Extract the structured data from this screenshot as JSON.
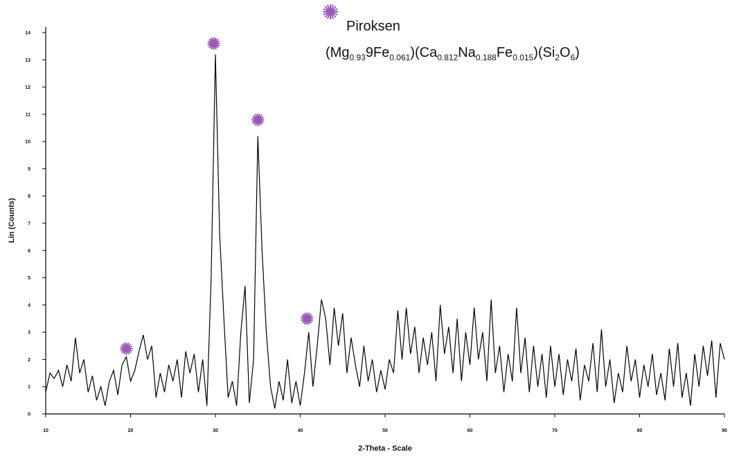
{
  "chart_data": {
    "type": "line",
    "x_label": "2-Theta - Scale",
    "y_label": "Lin (Counts)",
    "legend_label": "Piroksen",
    "legend_formula": [
      {
        "text": "(Mg",
        "sub": "0.93"
      },
      {
        "text": "9Fe",
        "sub": "0.061"
      },
      {
        "text": ")(Ca",
        "sub": "0.812"
      },
      {
        "text": "Na",
        "sub": "0.188"
      },
      {
        "text": "Fe",
        "sub": "0.015"
      },
      {
        "text": ")(Si",
        "sub": "2"
      },
      {
        "text": "O",
        "sub": "6"
      },
      {
        "text": ")"
      }
    ],
    "color": "#000000",
    "marker_color": "#9b59b6",
    "x": [
      10,
      10.5,
      11,
      11.5,
      12,
      12.5,
      13,
      13.5,
      14,
      14.5,
      15,
      15.5,
      16,
      16.5,
      17,
      17.5,
      18,
      18.5,
      19,
      19.5,
      20,
      20.5,
      21,
      21.5,
      22,
      22.5,
      23,
      23.5,
      24,
      24.5,
      25,
      25.5,
      26,
      26.5,
      27,
      27.5,
      28,
      28.5,
      29,
      29.5,
      30,
      30.5,
      31,
      31.5,
      32,
      32.5,
      33,
      33.5,
      34,
      34.5,
      35,
      35.5,
      36,
      36.5,
      37,
      37.5,
      38,
      38.5,
      39,
      39.5,
      40,
      40.5,
      41,
      41.5,
      42,
      42.5,
      43,
      43.5,
      44,
      44.5,
      45,
      45.5,
      46,
      46.5,
      47,
      47.5,
      48,
      48.5,
      49,
      49.5,
      50,
      50.5,
      51,
      51.5,
      52,
      52.5,
      53,
      53.5,
      54,
      54.5,
      55,
      55.5,
      56,
      56.5,
      57,
      57.5,
      58,
      58.5,
      59,
      59.5,
      60,
      60.5,
      61,
      61.5,
      62,
      62.5,
      63,
      63.5,
      64,
      64.5,
      65,
      65.5,
      66,
      66.5,
      67,
      67.5,
      68,
      68.5,
      69,
      69.5,
      70,
      70.5,
      71,
      71.5,
      72,
      72.5,
      73,
      73.5,
      74,
      74.5,
      75,
      75.5,
      76,
      76.5,
      77,
      77.5,
      78,
      78.5,
      79,
      79.5,
      80,
      80.5,
      81,
      81.5,
      82,
      82.5,
      83,
      83.5,
      84,
      84.5,
      85,
      85.5,
      86,
      86.5,
      87,
      87.5,
      88,
      88.5,
      89,
      89.5,
      90
    ],
    "values": [
      0.8,
      1.5,
      1.3,
      1.6,
      1.0,
      1.8,
      1.2,
      2.8,
      1.5,
      2.0,
      0.8,
      1.4,
      0.5,
      1.0,
      0.3,
      1.2,
      1.6,
      0.7,
      1.8,
      2.1,
      1.2,
      1.6,
      2.3,
      2.9,
      2.0,
      2.5,
      0.6,
      1.5,
      0.8,
      1.8,
      1.2,
      2.0,
      0.6,
      2.3,
      1.5,
      2.2,
      0.8,
      2.0,
      0.3,
      5.0,
      13.2,
      6.6,
      3.5,
      0.6,
      1.2,
      0.3,
      3.0,
      4.7,
      0.4,
      2.0,
      10.2,
      6.0,
      3.0,
      1.0,
      0.2,
      1.2,
      0.5,
      2.0,
      0.4,
      1.2,
      0.3,
      1.5,
      3.0,
      1.0,
      2.5,
      4.2,
      3.5,
      1.8,
      3.9,
      2.5,
      3.7,
      1.5,
      2.8,
      1.8,
      1.0,
      2.5,
      1.2,
      2.0,
      0.8,
      1.6,
      0.9,
      2.0,
      1.5,
      3.8,
      2.0,
      3.9,
      2.2,
      3.2,
      1.5,
      2.8,
      1.8,
      3.0,
      1.2,
      4.0,
      2.2,
      3.2,
      1.5,
      3.5,
      1.2,
      3.0,
      1.8,
      3.9,
      2.0,
      3.0,
      1.2,
      4.2,
      1.5,
      2.5,
      0.8,
      2.2,
      1.2,
      3.9,
      1.5,
      2.8,
      0.8,
      2.5,
      1.0,
      2.2,
      0.6,
      2.5,
      1.0,
      2.2,
      0.7,
      2.0,
      1.2,
      2.4,
      0.5,
      1.8,
      1.2,
      2.6,
      0.8,
      3.1,
      1.0,
      2.0,
      0.4,
      1.5,
      0.8,
      2.5,
      1.2,
      2.0,
      0.6,
      1.8,
      1.0,
      2.2,
      0.7,
      1.5,
      0.5,
      2.4,
      1.0,
      2.6,
      0.6,
      1.5,
      0.3,
      2.2,
      1.0,
      2.5,
      1.4,
      2.7,
      0.6,
      2.6,
      2.0
    ],
    "peak_markers": [
      {
        "x": 19.5,
        "y": 2.4
      },
      {
        "x": 29.8,
        "y": 13.6
      },
      {
        "x": 35.0,
        "y": 10.8
      },
      {
        "x": 40.8,
        "y": 3.5
      }
    ],
    "xlim": [
      10,
      90
    ],
    "ylim": [
      0,
      14
    ],
    "xticks": [
      10,
      20,
      30,
      40,
      50,
      60,
      70,
      80,
      90
    ],
    "yticks": [
      0,
      1,
      2,
      3,
      4,
      5,
      6,
      7,
      8,
      9,
      10,
      11,
      12,
      13,
      14
    ]
  }
}
